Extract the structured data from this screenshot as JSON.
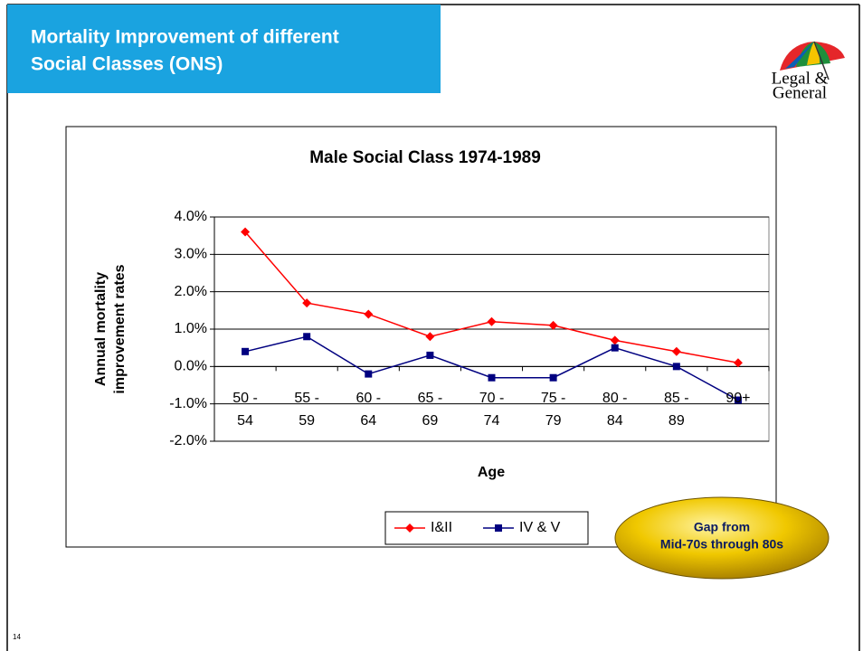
{
  "header": {
    "title": [
      "Mortality Improvement of different",
      "Social Classes (ONS)"
    ],
    "logo": [
      "Legal &",
      "General"
    ]
  },
  "page_number": "14",
  "chart_data": {
    "type": "line",
    "title": "Male Social Class 1974-1989",
    "categories": [
      "50 - 54",
      "55 - 59",
      "60 - 64",
      "65 - 69",
      "70 - 74",
      "75 - 79",
      "80 - 84",
      "85 - 89",
      "90+"
    ],
    "series": [
      {
        "name": "I&II",
        "color": "#ff0000",
        "marker": "diamond",
        "values": [
          3.6,
          1.7,
          1.4,
          0.8,
          1.2,
          1.1,
          0.7,
          0.4,
          0.1
        ]
      },
      {
        "name": "IV & V",
        "color": "#000080",
        "marker": "square",
        "values": [
          0.4,
          0.8,
          -0.2,
          0.3,
          -0.3,
          -0.3,
          0.5,
          0.0,
          -0.9
        ]
      }
    ],
    "ylim": [
      -2,
      4
    ],
    "yticks": [
      {
        "value": -2,
        "label": "-2.0%"
      },
      {
        "value": -1,
        "label": "-1.0%"
      },
      {
        "value": 0,
        "label": "0.0%"
      },
      {
        "value": 1,
        "label": "1.0%"
      },
      {
        "value": 2,
        "label": "2.0%"
      },
      {
        "value": 3,
        "label": "3.0%"
      },
      {
        "value": 4,
        "label": "4.0%"
      }
    ],
    "y_label": [
      "Annual mortality",
      "improvement rates"
    ],
    "x_label": "Age",
    "grid": true,
    "legend": "bottom",
    "callout": [
      "Gap from",
      "Mid-70s through 80s"
    ]
  }
}
